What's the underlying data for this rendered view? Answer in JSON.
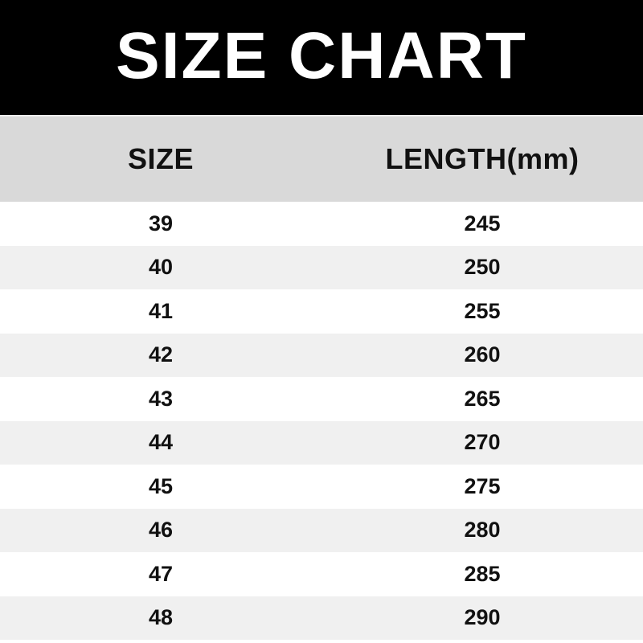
{
  "title": "SIZE CHART",
  "table": {
    "headers": [
      "SIZE",
      "LENGTH(mm)"
    ],
    "rows": [
      [
        "39",
        "245"
      ],
      [
        "40",
        "250"
      ],
      [
        "41",
        "255"
      ],
      [
        "42",
        "260"
      ],
      [
        "43",
        "265"
      ],
      [
        "44",
        "270"
      ],
      [
        "45",
        "275"
      ],
      [
        "46",
        "280"
      ],
      [
        "47",
        "285"
      ],
      [
        "48",
        "290"
      ]
    ]
  },
  "colors": {
    "banner_bg": "#000000",
    "banner_text": "#ffffff",
    "header_bg": "#d9d9d9",
    "row_bg": "#ffffff",
    "row_alt_bg": "#f0f0f0",
    "text": "#111111"
  },
  "chart_data": {
    "type": "table",
    "title": "SIZE CHART",
    "columns": [
      "SIZE",
      "LENGTH(mm)"
    ],
    "rows": [
      [
        39,
        245
      ],
      [
        40,
        250
      ],
      [
        41,
        255
      ],
      [
        42,
        260
      ],
      [
        43,
        265
      ],
      [
        44,
        270
      ],
      [
        45,
        275
      ],
      [
        46,
        280
      ],
      [
        47,
        285
      ],
      [
        48,
        290
      ]
    ]
  }
}
